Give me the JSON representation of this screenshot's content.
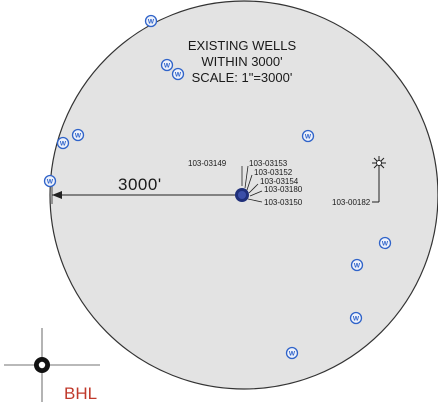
{
  "title_lines": [
    "EXISTING WELLS",
    "WITHIN 3000'",
    "SCALE: 1\"=3000'"
  ],
  "radius_label": "3000'",
  "center_well_labels": [
    "103-03149",
    "103-03153",
    "103-03152",
    "103-03154",
    "103-03180",
    "103-03150"
  ],
  "offset_well_label": "103-00182",
  "well_symbol_letter": "W",
  "bhl_label": "BHL",
  "colors": {
    "circle_fill": "#e3e3e3",
    "circle_stroke": "#333333",
    "well_marker": "#2f63c9",
    "center_cluster": "#1f2f7a",
    "bhl": "#c0392b"
  }
}
